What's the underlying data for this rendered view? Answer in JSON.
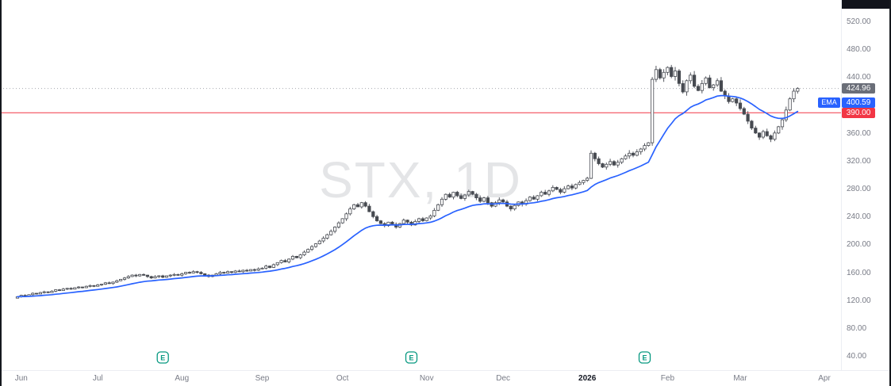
{
  "chart_data": {
    "type": "candlestick",
    "symbol": "STX",
    "timeframe": "1D",
    "watermark": "STX, 1D",
    "top_right_badge_label": "",
    "price_axis": {
      "ticks": [
        {
          "value": 520,
          "label": "520.00"
        },
        {
          "value": 480,
          "label": "480.00"
        },
        {
          "value": 440,
          "label": "440.00"
        },
        {
          "value": 360,
          "label": "360.00"
        },
        {
          "value": 320,
          "label": "320.00"
        },
        {
          "value": 280,
          "label": "280.00"
        },
        {
          "value": 240,
          "label": "240.00"
        },
        {
          "value": 200,
          "label": "200.00"
        },
        {
          "value": 160,
          "label": "160.00"
        },
        {
          "value": 120,
          "label": "120.00"
        },
        {
          "value": 80,
          "label": "80.00"
        },
        {
          "value": 40,
          "label": "40.00"
        }
      ]
    },
    "time_axis": {
      "labels": [
        {
          "label": "Jun",
          "index": 1
        },
        {
          "label": "Jul",
          "index": 21
        },
        {
          "label": "Aug",
          "index": 43
        },
        {
          "label": "Sep",
          "index": 64
        },
        {
          "label": "Oct",
          "index": 85
        },
        {
          "label": "Nov",
          "index": 107
        },
        {
          "label": "Dec",
          "index": 127
        },
        {
          "label": "2026",
          "index": 149,
          "year": true
        },
        {
          "label": "Feb",
          "index": 170
        },
        {
          "label": "Mar",
          "index": 189
        },
        {
          "label": "Apr",
          "index": 211
        }
      ]
    },
    "earnings": {
      "label": "E",
      "indices": [
        38,
        103,
        164
      ],
      "color": "#089981"
    },
    "series": {
      "first_open": 124,
      "closes": [
        126,
        128,
        127,
        129,
        131,
        130,
        132,
        133,
        132,
        134,
        136,
        135,
        137,
        138,
        137,
        139,
        140,
        139,
        141,
        142,
        141,
        143,
        144,
        146,
        145,
        147,
        149,
        151,
        153,
        155,
        157,
        156,
        158,
        157,
        155,
        153,
        155,
        156,
        154,
        156,
        157,
        158,
        157,
        159,
        161,
        160,
        162,
        161,
        159,
        157,
        155,
        157,
        159,
        161,
        160,
        162,
        161,
        163,
        162,
        164,
        163,
        165,
        164,
        166,
        167,
        170,
        168,
        172,
        175,
        178,
        176,
        180,
        184,
        182,
        186,
        190,
        194,
        198,
        202,
        206,
        210,
        215,
        220,
        226,
        232,
        238,
        245,
        252,
        258,
        255,
        261,
        256,
        248,
        241,
        235,
        231,
        228,
        233,
        230,
        226,
        231,
        236,
        233,
        229,
        234,
        238,
        235,
        239,
        242,
        250,
        258,
        266,
        273,
        269,
        276,
        271,
        267,
        272,
        277,
        273,
        268,
        263,
        268,
        261,
        256,
        261,
        265,
        262,
        256,
        252,
        257,
        262,
        259,
        264,
        269,
        266,
        271,
        276,
        273,
        278,
        283,
        280,
        276,
        281,
        285,
        282,
        287,
        290,
        293,
        296,
        332,
        324,
        317,
        312,
        316,
        320,
        315,
        319,
        324,
        328,
        332,
        329,
        334,
        338,
        343,
        347,
        438,
        452,
        440,
        448,
        455,
        442,
        450,
        432,
        420,
        436,
        444,
        428,
        422,
        432,
        440,
        426,
        430,
        436,
        421,
        414,
        406,
        410,
        404,
        396,
        388,
        378,
        368,
        361,
        355,
        363,
        357,
        352,
        361,
        370,
        380,
        394,
        410,
        421,
        424.96
      ]
    },
    "ema": {
      "label": "EMA",
      "period": 21,
      "value": 400.59,
      "value_label": "400.59",
      "color": "#2962ff"
    },
    "last_price": {
      "value": 424.96,
      "label": "424.96",
      "badge_color": "#6a6e78",
      "line_color": "#a6a9b0"
    },
    "price_line": {
      "value": 390,
      "label": "390.00",
      "color": "#f23645"
    },
    "scale": {
      "y_of_520": 28,
      "y_of_40": 450,
      "x0": 22,
      "dx": 4.82
    },
    "colors": {
      "up": "#ffffff",
      "down": "#474a51",
      "border": "#474a51",
      "wick": "#565960"
    },
    "ylim": [
      20,
      535
    ],
    "grid": "off",
    "legend_position": "none"
  }
}
